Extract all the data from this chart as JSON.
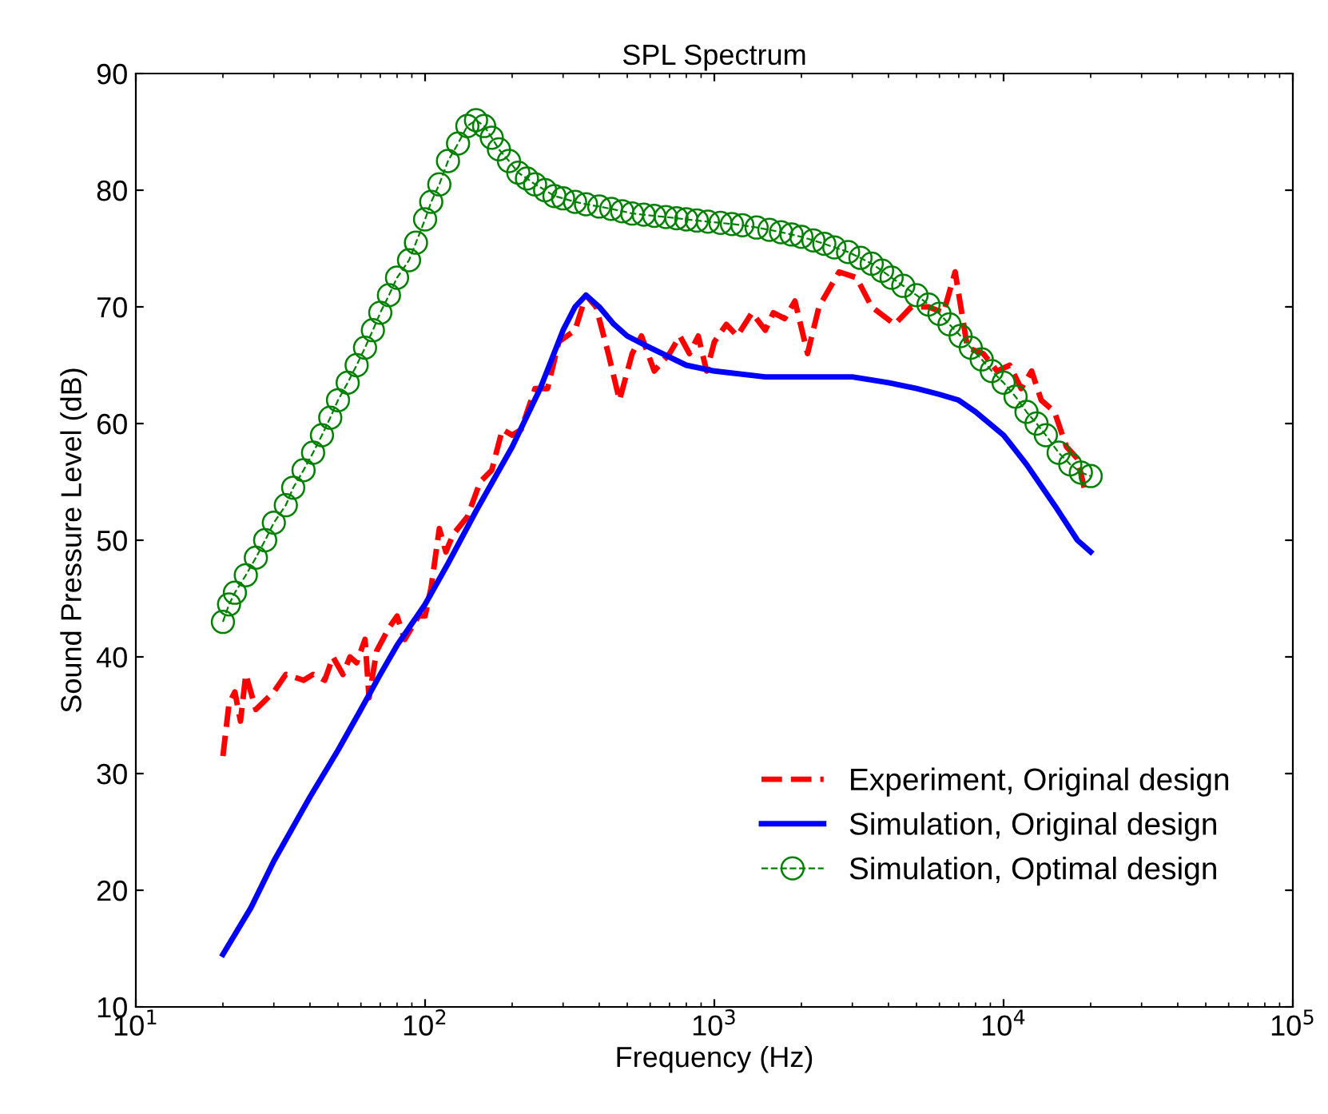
{
  "chart_data": {
    "type": "line",
    "title": "SPL Spectrum",
    "xlabel": "Frequency (Hz)",
    "ylabel": "Sound Pressure Level (dB)",
    "log": "x",
    "xlim": [
      10,
      100000
    ],
    "xticks": [
      {
        "value": 10,
        "label": "10$^{1}$"
      },
      {
        "value": 100,
        "label": "10$^{2}$"
      },
      {
        "value": 1000,
        "label": "10$^{3}$"
      },
      {
        "value": 10000,
        "label": "10$^{4}$"
      },
      {
        "value": 100000,
        "label": "10$^{5}$"
      }
    ],
    "ylim": [
      10,
      90
    ],
    "yticks": [
      10,
      20,
      30,
      40,
      50,
      60,
      70,
      80,
      90
    ],
    "grid": false,
    "legend": "bottom right",
    "series": [
      {
        "name": "Experiment, Original design",
        "color": "#ff0000",
        "line_style": "dashed",
        "marker": "none",
        "x": [
          20,
          21,
          22,
          23,
          24,
          26,
          30,
          33,
          38,
          41,
          45,
          48,
          52,
          55,
          58,
          62,
          64,
          68,
          75,
          80,
          85,
          95,
          100,
          105,
          112,
          118,
          125,
          140,
          155,
          170,
          185,
          200,
          215,
          240,
          265,
          290,
          330,
          360,
          390,
          430,
          470,
          520,
          560,
          620,
          700,
          760,
          820,
          880,
          940,
          1000,
          1100,
          1200,
          1350,
          1500,
          1600,
          1750,
          1900,
          2100,
          2300,
          2700,
          3100,
          3500,
          4200,
          4800,
          5500,
          6200,
          6800,
          7500,
          8500,
          9500,
          10500,
          11500,
          12500,
          13500,
          15000,
          16500,
          18000,
          19000
        ],
        "values": [
          31.5,
          36,
          37,
          34.5,
          38.5,
          35.5,
          37,
          38.5,
          38,
          38.5,
          38,
          40,
          38.5,
          40,
          39.5,
          41.5,
          36.5,
          40.5,
          42.5,
          43.5,
          41.5,
          43.5,
          43.5,
          46,
          51,
          49,
          50.5,
          52,
          55,
          56,
          59.5,
          59,
          59.5,
          63,
          63,
          67,
          68,
          71,
          70,
          66,
          62,
          66,
          67.5,
          64.5,
          66,
          67.5,
          66,
          67.5,
          64.5,
          67,
          68.5,
          67.5,
          69.5,
          68,
          69.5,
          69,
          70.5,
          66,
          70,
          73,
          72.5,
          70,
          68.5,
          70,
          70,
          69.5,
          73,
          66.5,
          66,
          64.5,
          65,
          63,
          64.5,
          62,
          61,
          58,
          57,
          54.5
        ]
      },
      {
        "name": "Simulation, Original design",
        "color": "#0000ff",
        "line_style": "solid",
        "marker": "none",
        "x": [
          20,
          25,
          30,
          40,
          50,
          60,
          70,
          80,
          100,
          120,
          150,
          200,
          250,
          300,
          330,
          360,
          400,
          450,
          500,
          600,
          800,
          1000,
          1500,
          2000,
          3000,
          4000,
          5000,
          6000,
          7000,
          8000,
          10000,
          12000,
          15000,
          18000,
          20000
        ],
        "values": [
          14.5,
          18.5,
          22.5,
          28,
          32,
          35.5,
          38.5,
          41,
          44.5,
          48,
          52.5,
          58,
          63,
          68,
          70,
          71,
          70,
          68.5,
          67.5,
          66.5,
          65,
          64.5,
          64,
          64,
          64,
          63.5,
          63,
          62.5,
          62,
          61,
          59,
          56.5,
          53,
          50,
          49
        ]
      },
      {
        "name": "Simulation, Optimal design",
        "color": "#008000",
        "line_style": "dashed",
        "marker": "circle",
        "x": [
          20,
          21,
          22,
          24,
          26,
          28,
          30,
          33,
          35,
          38,
          41,
          44,
          47,
          50,
          54,
          58,
          62,
          66,
          70,
          75,
          80,
          88,
          93,
          100,
          105,
          112,
          120,
          130,
          140,
          150,
          160,
          170,
          180,
          195,
          210,
          225,
          240,
          260,
          280,
          300,
          330,
          360,
          400,
          440,
          480,
          520,
          570,
          620,
          680,
          740,
          800,
          870,
          950,
          1050,
          1150,
          1250,
          1400,
          1550,
          1700,
          1850,
          2000,
          2200,
          2400,
          2600,
          2900,
          3200,
          3500,
          3800,
          4100,
          4500,
          5000,
          5500,
          6000,
          6500,
          7100,
          7700,
          8400,
          9100,
          10000,
          11000,
          12000,
          13000,
          14000,
          15500,
          17000,
          18500,
          20000
        ],
        "values": [
          43,
          44.5,
          45.5,
          47,
          48.5,
          50,
          51.5,
          53,
          54.5,
          56,
          57.5,
          59,
          60.5,
          62,
          63.5,
          65,
          66.5,
          68,
          69.5,
          71,
          72.5,
          74,
          75.5,
          77.5,
          79,
          80.5,
          82.5,
          84,
          85.5,
          86,
          85.5,
          84.5,
          83.5,
          82.5,
          81.5,
          81,
          80.5,
          80,
          79.5,
          79.3,
          79,
          78.8,
          78.6,
          78.4,
          78.2,
          78,
          77.9,
          77.8,
          77.7,
          77.6,
          77.5,
          77.4,
          77.3,
          77.2,
          77.1,
          77,
          76.8,
          76.6,
          76.4,
          76.2,
          76,
          75.7,
          75.4,
          75.1,
          74.7,
          74.2,
          73.7,
          73.1,
          72.5,
          71.8,
          71,
          70.2,
          69.4,
          68.5,
          67.5,
          66.5,
          65.5,
          64.5,
          63.5,
          62.3,
          61,
          60,
          59,
          57.5,
          56.5,
          55.8,
          55.5
        ]
      }
    ]
  }
}
